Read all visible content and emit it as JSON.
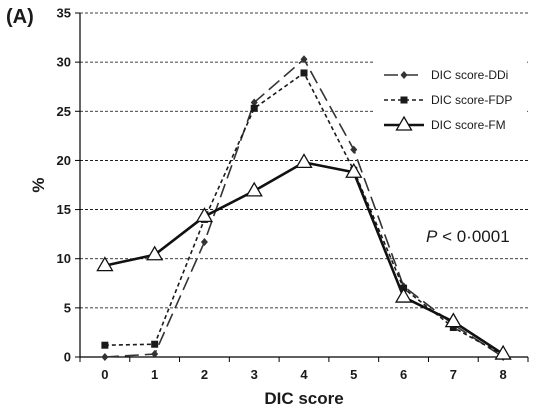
{
  "panel_label": "(A)",
  "chart_data": {
    "type": "line",
    "xlabel": "DIC score",
    "ylabel": "%",
    "categories": [
      0,
      1,
      2,
      3,
      4,
      5,
      6,
      7,
      8
    ],
    "ylim": [
      0,
      35
    ],
    "yticks": [
      0,
      5,
      10,
      15,
      20,
      25,
      30,
      35
    ],
    "grid": "horizontal dashed",
    "legend_position": "top-right",
    "annotation": {
      "italic": "P",
      "text": " < 0·0001"
    },
    "series": [
      {
        "name": "DIC score-DDi",
        "style": "long-dash",
        "marker": "diamond",
        "color": "#333333",
        "values": [
          0.0,
          0.3,
          11.7,
          25.9,
          30.3,
          21.1,
          7.2,
          3.3,
          0.0
        ]
      },
      {
        "name": "DIC score-FDP",
        "style": "short-dash",
        "marker": "square",
        "color": "#1a1a1a",
        "values": [
          1.2,
          1.3,
          14.0,
          25.3,
          28.9,
          19.0,
          7.0,
          3.0,
          0.2
        ]
      },
      {
        "name": "DIC score-FM",
        "style": "solid",
        "marker": "triangle",
        "color": "#111111",
        "values": [
          9.3,
          10.4,
          14.3,
          16.9,
          19.8,
          18.8,
          6.1,
          3.6,
          0.3
        ]
      }
    ]
  }
}
